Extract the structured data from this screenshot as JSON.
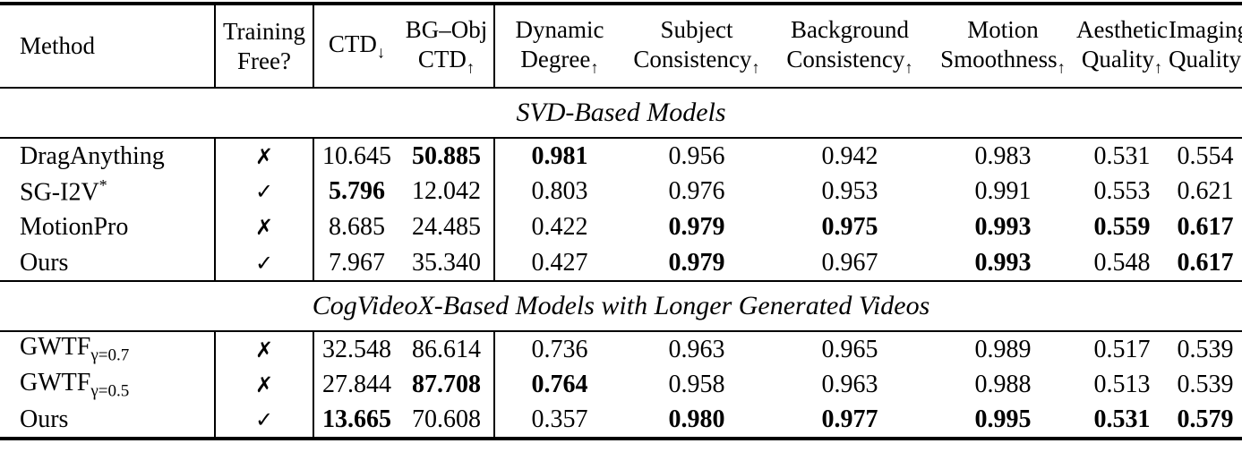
{
  "marks": {
    "check": "✓",
    "cross": "✗"
  },
  "table": {
    "columns": [
      {
        "id": "method",
        "line1": "Method"
      },
      {
        "id": "training-free",
        "line1": "Training",
        "line2": "Free?"
      },
      {
        "id": "ctd",
        "line1": "CTD",
        "arrow": "↓"
      },
      {
        "id": "bg-obj-ctd",
        "line1": "BG–Obj",
        "line2": "CTD",
        "arrow": "↑"
      },
      {
        "id": "dynamic-degree",
        "line1": "Dynamic",
        "line2": "Degree",
        "arrow": "↑"
      },
      {
        "id": "subject-consistency",
        "line1": "Subject",
        "line2": "Consistency",
        "arrow": "↑"
      },
      {
        "id": "background-consistency",
        "line1": "Background",
        "line2": "Consistency",
        "arrow": "↑"
      },
      {
        "id": "motion-smoothness",
        "line1": "Motion",
        "line2": "Smoothness",
        "arrow": "↑"
      },
      {
        "id": "aesthetic-quality",
        "line1": "Aesthetic",
        "line2": "Quality",
        "arrow": "↑"
      },
      {
        "id": "imaging-quality",
        "line1": "Imaging",
        "line2": "Quality",
        "arrow": "↑"
      }
    ],
    "sections": [
      {
        "title": "SVD-Based Models",
        "rows": [
          {
            "method": {
              "text": "DragAnything"
            },
            "training_free": "cross",
            "values": [
              {
                "v": "10.645",
                "b": false
              },
              {
                "v": "50.885",
                "b": true
              },
              {
                "v": "0.981",
                "b": true
              },
              {
                "v": "0.956",
                "b": false
              },
              {
                "v": "0.942",
                "b": false
              },
              {
                "v": "0.983",
                "b": false
              },
              {
                "v": "0.531",
                "b": false
              },
              {
                "v": "0.554",
                "b": false
              }
            ]
          },
          {
            "method": {
              "text": "SG-I2V",
              "sup": "*"
            },
            "training_free": "check",
            "values": [
              {
                "v": "5.796",
                "b": true
              },
              {
                "v": "12.042",
                "b": false
              },
              {
                "v": "0.803",
                "b": false
              },
              {
                "v": "0.976",
                "b": false
              },
              {
                "v": "0.953",
                "b": false
              },
              {
                "v": "0.991",
                "b": false
              },
              {
                "v": "0.553",
                "b": false
              },
              {
                "v": "0.621",
                "b": false
              }
            ]
          },
          {
            "method": {
              "text": "MotionPro"
            },
            "training_free": "cross",
            "values": [
              {
                "v": "8.685",
                "b": false
              },
              {
                "v": "24.485",
                "b": false
              },
              {
                "v": "0.422",
                "b": false
              },
              {
                "v": "0.979",
                "b": true
              },
              {
                "v": "0.975",
                "b": true
              },
              {
                "v": "0.993",
                "b": true
              },
              {
                "v": "0.559",
                "b": true
              },
              {
                "v": "0.617",
                "b": true
              }
            ]
          },
          {
            "method": {
              "text": "Ours"
            },
            "training_free": "check",
            "values": [
              {
                "v": "7.967",
                "b": false
              },
              {
                "v": "35.340",
                "b": false
              },
              {
                "v": "0.427",
                "b": false
              },
              {
                "v": "0.979",
                "b": true
              },
              {
                "v": "0.967",
                "b": false
              },
              {
                "v": "0.993",
                "b": true
              },
              {
                "v": "0.548",
                "b": false
              },
              {
                "v": "0.617",
                "b": true
              }
            ]
          }
        ]
      },
      {
        "title": "CogVideoX-Based Models with Longer Generated Videos",
        "rows": [
          {
            "method": {
              "text": "GWTF",
              "sub": "γ=0.7"
            },
            "training_free": "cross",
            "values": [
              {
                "v": "32.548",
                "b": false
              },
              {
                "v": "86.614",
                "b": false
              },
              {
                "v": "0.736",
                "b": false
              },
              {
                "v": "0.963",
                "b": false
              },
              {
                "v": "0.965",
                "b": false
              },
              {
                "v": "0.989",
                "b": false
              },
              {
                "v": "0.517",
                "b": false
              },
              {
                "v": "0.539",
                "b": false
              }
            ]
          },
          {
            "method": {
              "text": "GWTF",
              "sub": "γ=0.5"
            },
            "training_free": "cross",
            "values": [
              {
                "v": "27.844",
                "b": false
              },
              {
                "v": "87.708",
                "b": true
              },
              {
                "v": "0.764",
                "b": true
              },
              {
                "v": "0.958",
                "b": false
              },
              {
                "v": "0.963",
                "b": false
              },
              {
                "v": "0.988",
                "b": false
              },
              {
                "v": "0.513",
                "b": false
              },
              {
                "v": "0.539",
                "b": false
              }
            ]
          },
          {
            "method": {
              "text": "Ours"
            },
            "training_free": "check",
            "values": [
              {
                "v": "13.665",
                "b": true
              },
              {
                "v": "70.608",
                "b": false
              },
              {
                "v": "0.357",
                "b": false
              },
              {
                "v": "0.980",
                "b": true
              },
              {
                "v": "0.977",
                "b": true
              },
              {
                "v": "0.995",
                "b": true
              },
              {
                "v": "0.531",
                "b": true
              },
              {
                "v": "0.579",
                "b": true
              }
            ]
          }
        ]
      }
    ]
  }
}
